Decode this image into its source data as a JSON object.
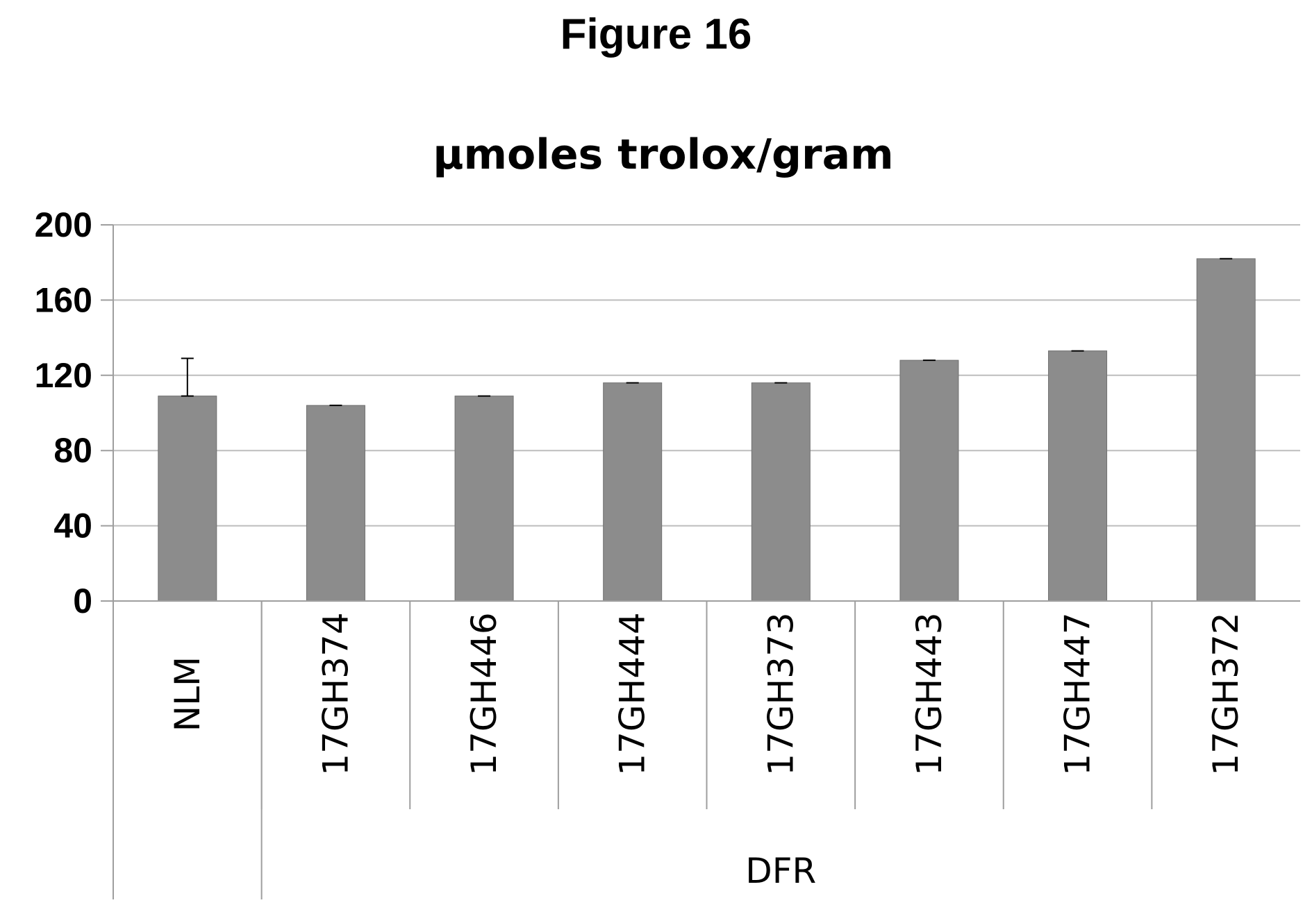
{
  "figure": {
    "label": "Figure 16"
  },
  "chart_data": {
    "type": "bar",
    "title": "μmoles trolox/gram",
    "xlabel": "",
    "ylabel": "",
    "categories": [
      "NLM",
      "17GH374",
      "17GH446",
      "17GH444",
      "17GH373",
      "17GH443",
      "17GH447",
      "17GH372"
    ],
    "values": [
      109,
      104,
      109,
      116,
      116,
      128,
      133,
      182
    ],
    "error": [
      20,
      0,
      0,
      0,
      0,
      0,
      0,
      0
    ],
    "groups": [
      {
        "label": "",
        "categories": [
          "NLM"
        ]
      },
      {
        "label": "DFR",
        "categories": [
          "17GH374",
          "17GH446",
          "17GH444",
          "17GH373",
          "17GH443",
          "17GH447",
          "17GH372"
        ]
      }
    ],
    "ylim": [
      0,
      200
    ],
    "yticks": [
      "0",
      "40",
      "80",
      "120",
      "160",
      "200"
    ],
    "grid": true,
    "legend": "none",
    "bar_color": "#8c8c8c",
    "grid_color": "#bdbdbd"
  }
}
